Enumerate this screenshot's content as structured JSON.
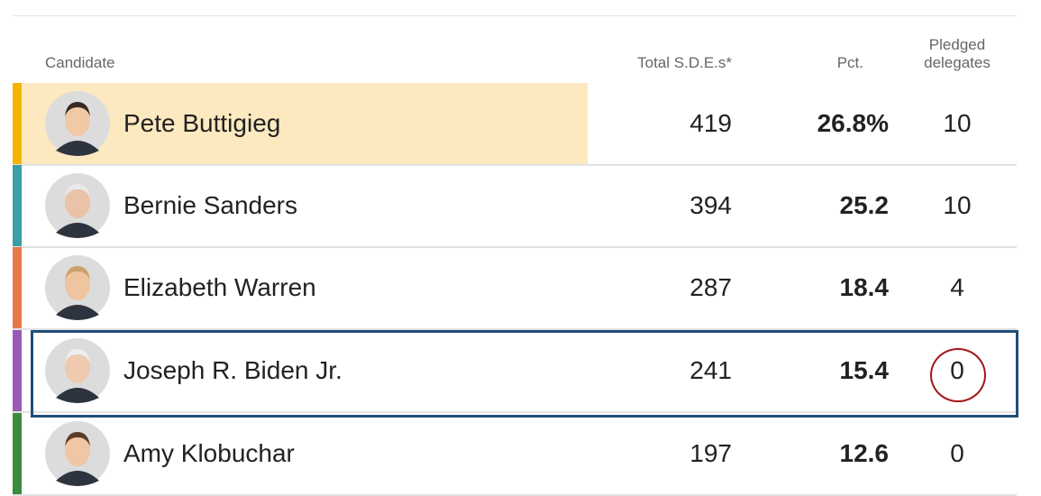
{
  "table": {
    "headers": {
      "candidate": "Candidate",
      "sdes": "Total S.D.E.s*",
      "pct": "Pct.",
      "delegates": "Pledged delegates"
    },
    "rows": [
      {
        "name": "Pete Buttigieg",
        "sdes": 419,
        "pct": "26.8%",
        "delegates": 10
      },
      {
        "name": "Bernie Sanders",
        "sdes": 394,
        "pct": "25.2",
        "delegates": 10
      },
      {
        "name": "Elizabeth Warren",
        "sdes": 287,
        "pct": "18.4",
        "delegates": 4
      },
      {
        "name": "Joseph R. Biden Jr.",
        "sdes": 241,
        "pct": "15.4",
        "delegates": 0
      },
      {
        "name": "Amy Klobuchar",
        "sdes": 197,
        "pct": "12.6",
        "delegates": 0
      }
    ]
  }
}
